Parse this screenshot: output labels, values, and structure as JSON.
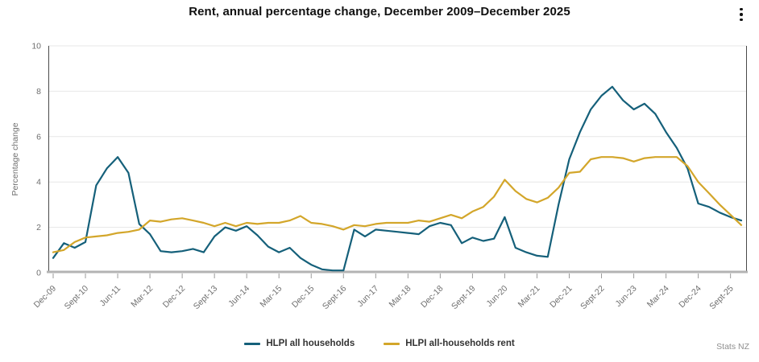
{
  "header": {
    "title": "Rent, annual percentage change, December 2009–December 2025",
    "menu_icon": "kebab-menu-icon"
  },
  "footer": {
    "source": "Stats NZ"
  },
  "chart_data": {
    "type": "line",
    "title": "Rent, annual percentage change, December 2009–December 2025",
    "xlabel": "",
    "ylabel": "Percentage change",
    "ylim": [
      0,
      10
    ],
    "yticks": [
      0,
      2,
      4,
      6,
      8,
      10
    ],
    "grid": true,
    "legend_position": "bottom",
    "x_tick_every": 3,
    "x_tick_labels": [
      "Dec-09",
      "Sept-10",
      "Jun-11",
      "Mar-12",
      "Dec-12",
      "Sept-13",
      "Jun-14",
      "Mar-15",
      "Dec-15",
      "Sept-16",
      "Jun-17",
      "Mar-18",
      "Dec-18",
      "Sept-19",
      "Jun-20",
      "Mar-21",
      "Dec-21",
      "Sept-22",
      "Jun-23",
      "Mar-24",
      "Dec-24",
      "Sept-25"
    ],
    "categories": [
      "Dec-09",
      "Mar-10",
      "Jun-10",
      "Sept-10",
      "Dec-10",
      "Mar-11",
      "Jun-11",
      "Sept-11",
      "Dec-11",
      "Mar-12",
      "Jun-12",
      "Sept-12",
      "Dec-12",
      "Mar-13",
      "Jun-13",
      "Sept-13",
      "Dec-13",
      "Mar-14",
      "Jun-14",
      "Sept-14",
      "Dec-14",
      "Mar-15",
      "Jun-15",
      "Sept-15",
      "Dec-15",
      "Mar-16",
      "Jun-16",
      "Sept-16",
      "Dec-16",
      "Mar-17",
      "Jun-17",
      "Sept-17",
      "Dec-17",
      "Mar-18",
      "Jun-18",
      "Sept-18",
      "Dec-18",
      "Mar-19",
      "Jun-19",
      "Sept-19",
      "Dec-19",
      "Mar-20",
      "Jun-20",
      "Sept-20",
      "Dec-20",
      "Mar-21",
      "Jun-21",
      "Sept-21",
      "Dec-21",
      "Mar-22",
      "Jun-22",
      "Sept-22",
      "Dec-22",
      "Mar-23",
      "Jun-23",
      "Sept-23",
      "Dec-23",
      "Mar-24",
      "Jun-24",
      "Sept-24",
      "Dec-24",
      "Mar-25",
      "Jun-25",
      "Sept-25",
      "Dec-25"
    ],
    "series": [
      {
        "name": "HLPI all households",
        "color": "#15607a",
        "values": [
          0.65,
          1.3,
          1.1,
          1.35,
          3.85,
          4.6,
          5.1,
          4.4,
          2.15,
          1.7,
          0.95,
          0.9,
          0.95,
          1.05,
          0.9,
          1.6,
          2.0,
          1.85,
          2.05,
          1.65,
          1.15,
          0.9,
          1.1,
          0.65,
          0.35,
          0.15,
          0.1,
          0.1,
          1.9,
          1.6,
          1.9,
          1.85,
          1.8,
          1.75,
          1.7,
          2.05,
          2.2,
          2.1,
          1.3,
          1.55,
          1.4,
          1.5,
          2.45,
          1.1,
          0.9,
          0.75,
          0.7,
          3.0,
          5.0,
          6.2,
          7.2,
          7.8,
          8.2,
          7.6,
          7.2,
          7.45,
          7.0,
          6.2,
          5.5,
          4.6,
          3.05,
          2.9,
          2.65,
          2.45,
          2.3
        ]
      },
      {
        "name": "HLPI all-households rent",
        "color": "#d3a62a",
        "values": [
          0.9,
          1.0,
          1.35,
          1.55,
          1.6,
          1.65,
          1.75,
          1.8,
          1.9,
          2.3,
          2.25,
          2.35,
          2.4,
          2.3,
          2.2,
          2.05,
          2.2,
          2.05,
          2.2,
          2.15,
          2.2,
          2.2,
          2.3,
          2.5,
          2.2,
          2.15,
          2.05,
          1.9,
          2.1,
          2.05,
          2.15,
          2.2,
          2.2,
          2.2,
          2.3,
          2.25,
          2.4,
          2.55,
          2.4,
          2.7,
          2.9,
          3.35,
          4.1,
          3.6,
          3.25,
          3.1,
          3.3,
          3.75,
          4.4,
          4.45,
          5.0,
          5.1,
          5.1,
          5.05,
          4.9,
          5.05,
          5.1,
          5.1,
          5.1,
          4.7,
          4.0,
          3.5,
          3.0,
          2.55,
          2.1
        ]
      }
    ]
  }
}
